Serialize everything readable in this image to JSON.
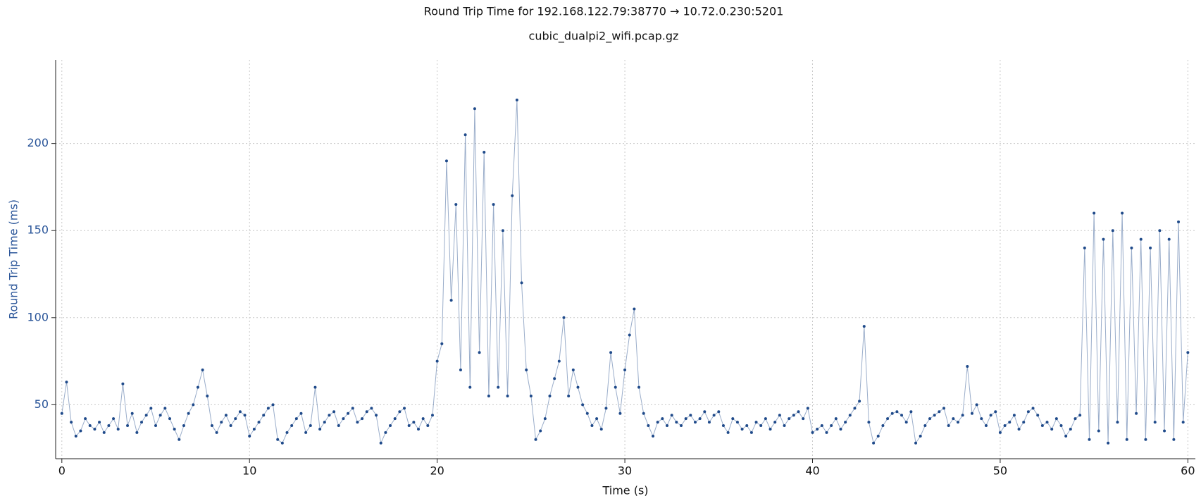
{
  "chart_data": {
    "type": "line",
    "title": "Round Trip Time for 192.168.122.79:38770 → 10.72.0.230:5201",
    "subtitle": "cubic_dualpi2_wifi.pcap.gz",
    "x_label": "Time (s)",
    "y_label": "Round Trip Time (ms)",
    "xlim": [
      -0.33,
      60.4
    ],
    "ylim": [
      19,
      248
    ],
    "xticks": [
      0,
      10,
      20,
      30,
      40,
      50,
      60
    ],
    "yticks": [
      50,
      100,
      150,
      200
    ],
    "grid": true,
    "markers": true,
    "series": [
      {
        "name": "Round Trip Time (ms)",
        "color": "#1f4a8a",
        "x": [
          0,
          0.25,
          0.5,
          0.75,
          1,
          1.25,
          1.5,
          1.75,
          2,
          2.25,
          2.5,
          2.75,
          3,
          3.25,
          3.5,
          3.75,
          4,
          4.25,
          4.5,
          4.75,
          5,
          5.25,
          5.5,
          5.75,
          6,
          6.25,
          6.5,
          6.75,
          7,
          7.25,
          7.5,
          7.75,
          8,
          8.25,
          8.5,
          8.75,
          9,
          9.25,
          9.5,
          9.75,
          10,
          10.25,
          10.5,
          10.75,
          11,
          11.25,
          11.5,
          11.75,
          12,
          12.25,
          12.5,
          12.75,
          13,
          13.25,
          13.5,
          13.75,
          14,
          14.25,
          14.5,
          14.75,
          15,
          15.25,
          15.5,
          15.75,
          16,
          16.25,
          16.5,
          16.75,
          17,
          17.25,
          17.5,
          17.75,
          18,
          18.25,
          18.5,
          18.75,
          19,
          19.25,
          19.5,
          19.75,
          20,
          20.25,
          20.5,
          20.75,
          21,
          21.25,
          21.5,
          21.75,
          22,
          22.25,
          22.5,
          22.75,
          23,
          23.25,
          23.5,
          23.75,
          24,
          24.25,
          24.5,
          24.75,
          25,
          25.25,
          25.5,
          25.75,
          26,
          26.25,
          26.5,
          26.75,
          27,
          27.25,
          27.5,
          27.75,
          28,
          28.25,
          28.5,
          28.75,
          29,
          29.25,
          29.5,
          29.75,
          30,
          30.25,
          30.5,
          30.75,
          31,
          31.25,
          31.5,
          31.75,
          32,
          32.25,
          32.5,
          32.75,
          33,
          33.25,
          33.5,
          33.75,
          34,
          34.25,
          34.5,
          34.75,
          35,
          35.25,
          35.5,
          35.75,
          36,
          36.25,
          36.5,
          36.75,
          37,
          37.25,
          37.5,
          37.75,
          38,
          38.25,
          38.5,
          38.75,
          39,
          39.25,
          39.5,
          39.75,
          40,
          40.25,
          40.5,
          40.75,
          41,
          41.25,
          41.5,
          41.75,
          42,
          42.25,
          42.5,
          42.75,
          43,
          43.25,
          43.5,
          43.75,
          44,
          44.25,
          44.5,
          44.75,
          45,
          45.25,
          45.5,
          45.75,
          46,
          46.25,
          46.5,
          46.75,
          47,
          47.25,
          47.5,
          47.75,
          48,
          48.25,
          48.5,
          48.75,
          49,
          49.25,
          49.5,
          49.75,
          50,
          50.25,
          50.5,
          50.75,
          51,
          51.25,
          51.5,
          51.75,
          52,
          52.25,
          52.5,
          52.75,
          53,
          53.25,
          53.5,
          53.75,
          54,
          54.25,
          54.5,
          54.75,
          55,
          55.25,
          55.5,
          55.75,
          56,
          56.25,
          56.5,
          56.75,
          57,
          57.25,
          57.5,
          57.75,
          58,
          58.25,
          58.5,
          58.75,
          59,
          59.25,
          59.5,
          59.75,
          60
        ],
        "values": [
          45,
          63,
          40,
          32,
          35,
          42,
          38,
          36,
          40,
          34,
          38,
          42,
          36,
          62,
          38,
          45,
          34,
          40,
          44,
          48,
          38,
          44,
          48,
          42,
          36,
          30,
          38,
          45,
          50,
          60,
          70,
          55,
          38,
          34,
          40,
          44,
          38,
          42,
          46,
          44,
          32,
          36,
          40,
          44,
          48,
          50,
          30,
          28,
          34,
          38,
          42,
          45,
          34,
          38,
          60,
          36,
          40,
          44,
          46,
          38,
          42,
          45,
          48,
          40,
          42,
          46,
          48,
          44,
          28,
          34,
          38,
          42,
          46,
          48,
          38,
          40,
          36,
          42,
          38,
          44,
          75,
          85,
          190,
          110,
          165,
          70,
          205,
          60,
          220,
          80,
          195,
          55,
          165,
          60,
          150,
          55,
          170,
          225,
          120,
          70,
          55,
          30,
          35,
          42,
          55,
          65,
          75,
          100,
          55,
          70,
          60,
          50,
          45,
          38,
          42,
          36,
          48,
          80,
          60,
          45,
          70,
          90,
          105,
          60,
          45,
          38,
          32,
          40,
          42,
          38,
          44,
          40,
          38,
          42,
          44,
          40,
          42,
          46,
          40,
          44,
          46,
          38,
          34,
          42,
          40,
          36,
          38,
          34,
          40,
          38,
          42,
          36,
          40,
          44,
          38,
          42,
          44,
          46,
          42,
          48,
          34,
          36,
          38,
          34,
          38,
          42,
          36,
          40,
          44,
          48,
          52,
          95,
          40,
          28,
          32,
          38,
          42,
          45,
          46,
          44,
          40,
          46,
          28,
          32,
          38,
          42,
          44,
          46,
          48,
          38,
          42,
          40,
          44,
          72,
          45,
          50,
          42,
          38,
          44,
          46,
          34,
          38,
          40,
          44,
          36,
          40,
          46,
          48,
          44,
          38,
          40,
          36,
          42,
          38,
          32,
          36,
          42,
          44,
          140,
          30,
          160,
          35,
          145,
          28,
          150,
          40,
          160,
          30,
          140,
          45,
          145,
          30,
          140,
          40,
          150,
          35,
          145,
          30,
          155,
          40,
          80
        ]
      }
    ]
  }
}
